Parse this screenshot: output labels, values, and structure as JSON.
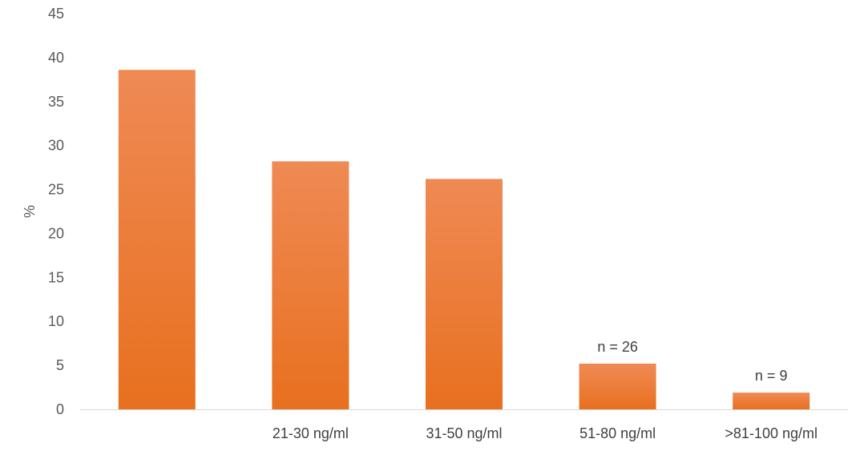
{
  "chart_data": {
    "type": "bar",
    "categories": [
      "",
      "21-30 ng/ml",
      "31-50 ng/ml",
      "51-80 ng/ml",
      ">81-100 ng/ml"
    ],
    "values": [
      38.6,
      28.2,
      26.2,
      5.2,
      1.9
    ],
    "data_labels": [
      "",
      "",
      "",
      "n = 26",
      "n = 9"
    ],
    "xlabel": "",
    "ylabel": "%",
    "ylim": [
      0,
      45
    ],
    "yticks": [
      0,
      5,
      10,
      15,
      20,
      25,
      30,
      35,
      40,
      45
    ],
    "grid": false,
    "legend": "none",
    "bar_color_top": "#ef8a55",
    "bar_color_bottom": "#e8701f",
    "axis_color": "#d9d9d9"
  }
}
